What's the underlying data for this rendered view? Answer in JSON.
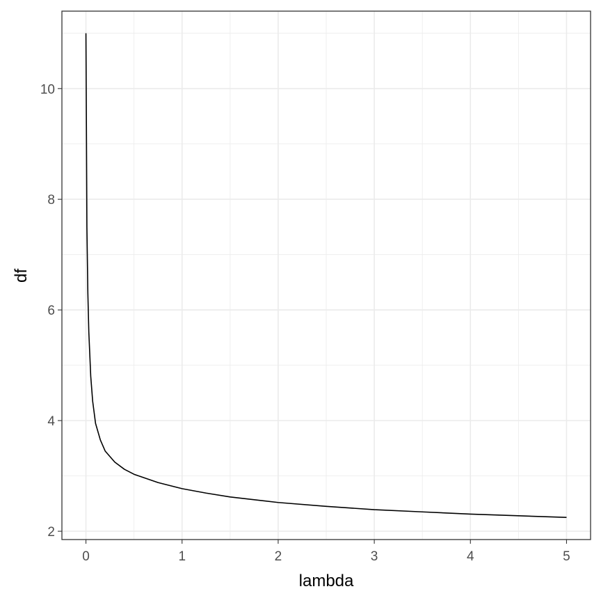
{
  "chart_data": {
    "type": "line",
    "title": "",
    "xlabel": "lambda",
    "ylabel": "df",
    "xlim": [
      -0.25,
      5.25
    ],
    "ylim": [
      1.85,
      11.4
    ],
    "x_ticks": [
      0,
      1,
      2,
      3,
      4,
      5
    ],
    "x_minor_ticks": [
      0.5,
      1.5,
      2.5,
      3.5,
      4.5
    ],
    "y_ticks": [
      2,
      4,
      6,
      8,
      10
    ],
    "y_minor_ticks": [
      3,
      5,
      7,
      9,
      11
    ],
    "grid": true,
    "legend": "none",
    "line_color": "#000000",
    "grid_color": "#ebebeb",
    "panel_border_color": "#333333",
    "series": [
      {
        "x": [
          0,
          0.005,
          0.01,
          0.02,
          0.03,
          0.05,
          0.07,
          0.1,
          0.15,
          0.2,
          0.3,
          0.4,
          0.5,
          0.75,
          1,
          1.25,
          1.5,
          2,
          2.5,
          3,
          3.5,
          4,
          4.5,
          5
        ],
        "y": [
          11.0,
          9.3,
          7.5,
          6.3,
          5.6,
          4.8,
          4.35,
          3.95,
          3.65,
          3.45,
          3.25,
          3.12,
          3.03,
          2.88,
          2.77,
          2.69,
          2.62,
          2.52,
          2.45,
          2.39,
          2.35,
          2.31,
          2.28,
          2.25
        ]
      }
    ]
  }
}
